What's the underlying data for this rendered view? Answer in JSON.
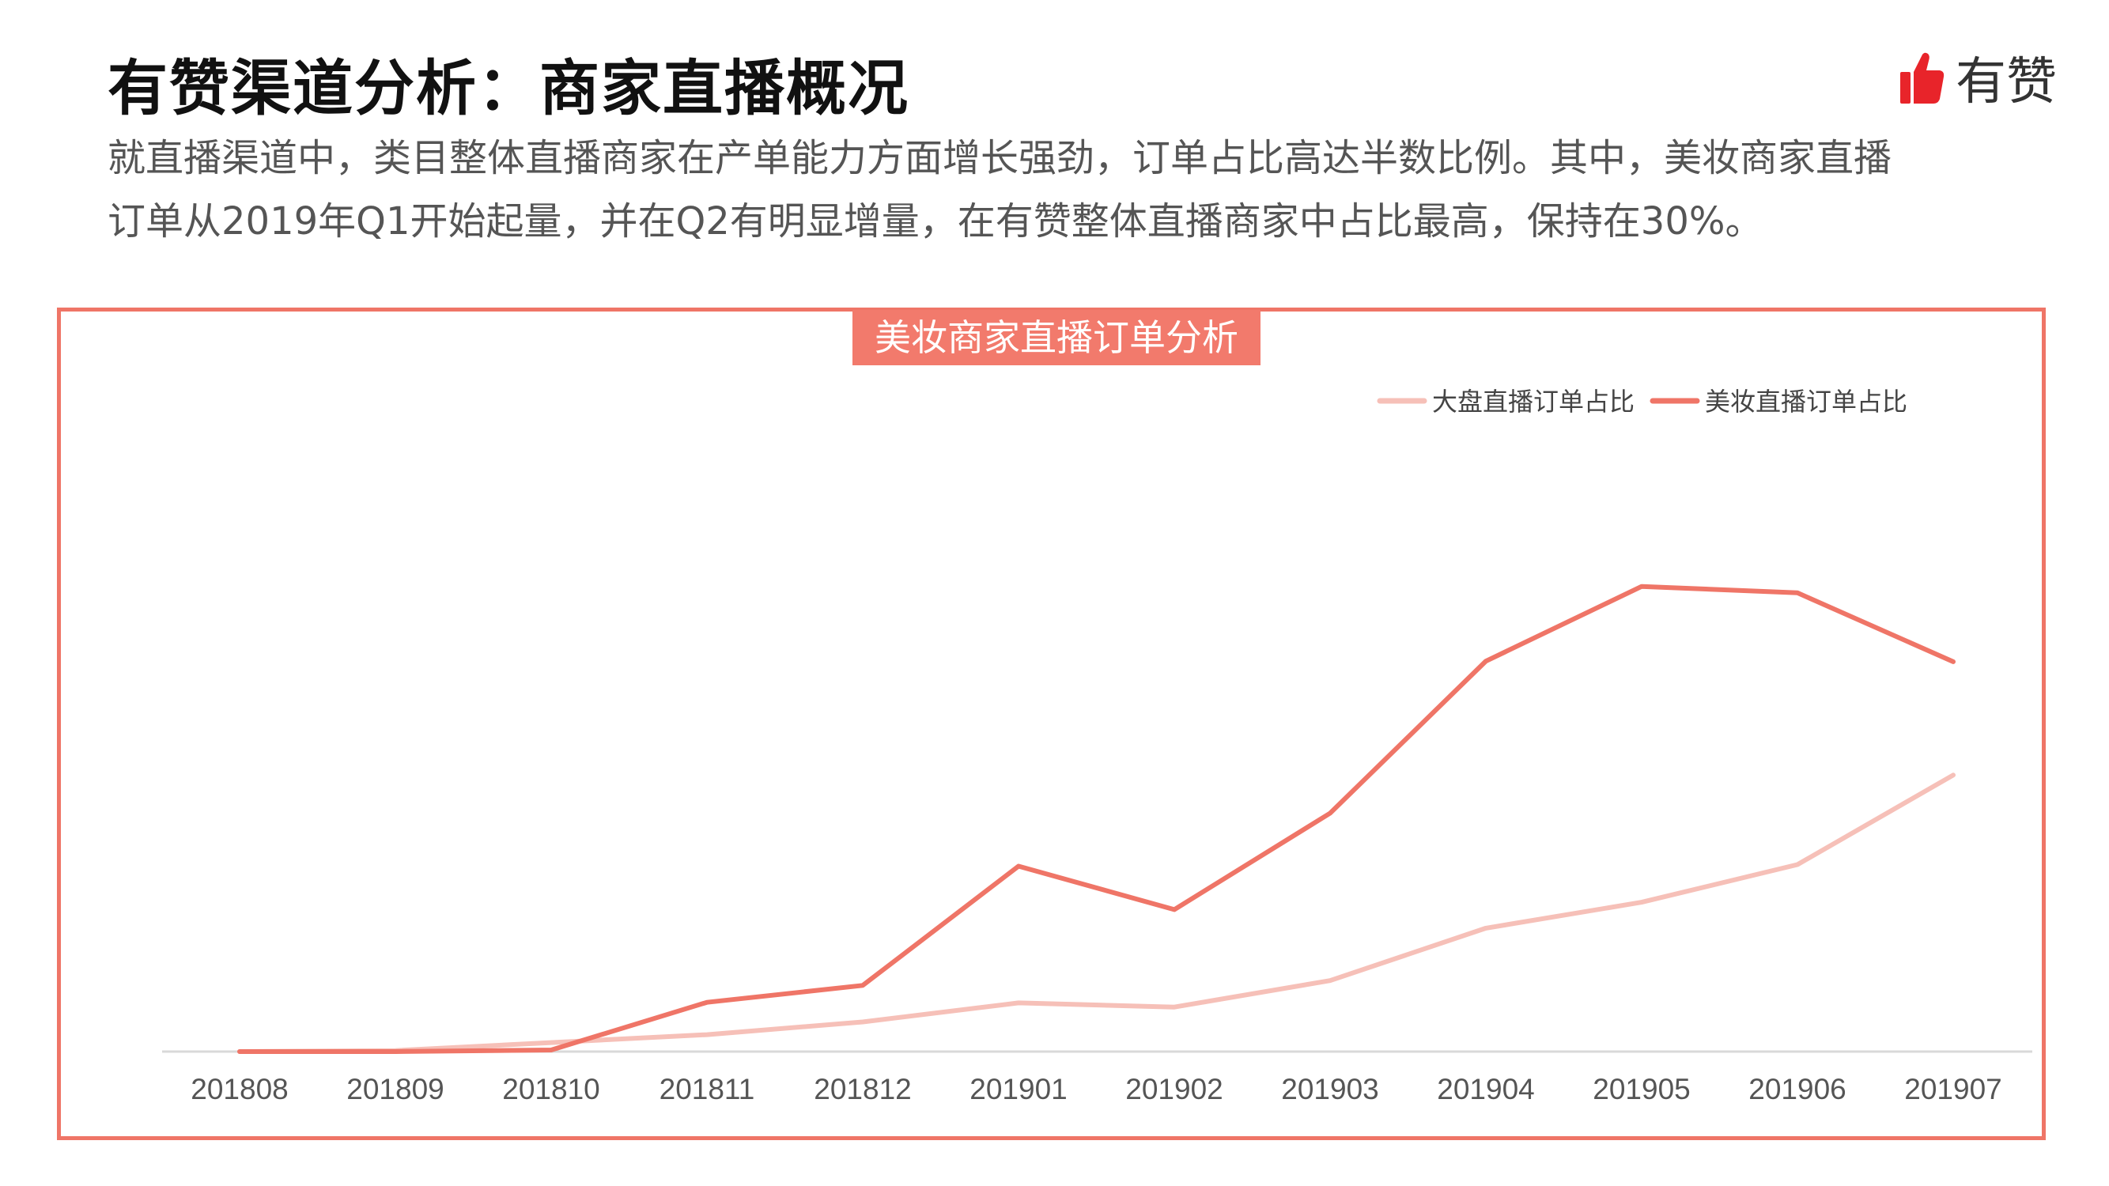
{
  "header": {
    "title": "有赞渠道分析：商家直播概况",
    "brand_name": "有赞",
    "brand_icon": "thumbs-up-icon",
    "brand_color": "#e8242a"
  },
  "description": {
    "line1": "就直播渠道中，类目整体直播商家在产单能力方面增长强劲，订单占比高达半数比例。其中，美妆商家直播",
    "line2": "订单从2019年Q1开始起量，并在Q2有明显增量，在有赞整体直播商家中占比最高，保持在30%。"
  },
  "chart_data": {
    "type": "line",
    "title": "美妆商家直播订单分析",
    "categories": [
      "201808",
      "201809",
      "201810",
      "201811",
      "201812",
      "201901",
      "201902",
      "201903",
      "201904",
      "201905",
      "201906",
      "201907"
    ],
    "series": [
      {
        "name": "大盘直播订单占比",
        "color": "#f6c0b8",
        "values": [
          0,
          0.2,
          1.7,
          3.2,
          5.6,
          9.2,
          8.4,
          13.4,
          23.3,
          28.2,
          35.3,
          52.2
        ]
      },
      {
        "name": "美妆直播订单占比",
        "color": "#ef7567",
        "values": [
          0,
          0,
          0.3,
          9.3,
          12.5,
          35.0,
          26.8,
          45.0,
          73.7,
          87.8,
          86.6,
          73.6
        ]
      }
    ],
    "ylim": [
      0,
      100
    ],
    "xlabel": "",
    "ylabel": "",
    "grid": false,
    "y_axis_labels_shown": false,
    "legend_position": "top-right",
    "frame_color": "#ef7567"
  }
}
